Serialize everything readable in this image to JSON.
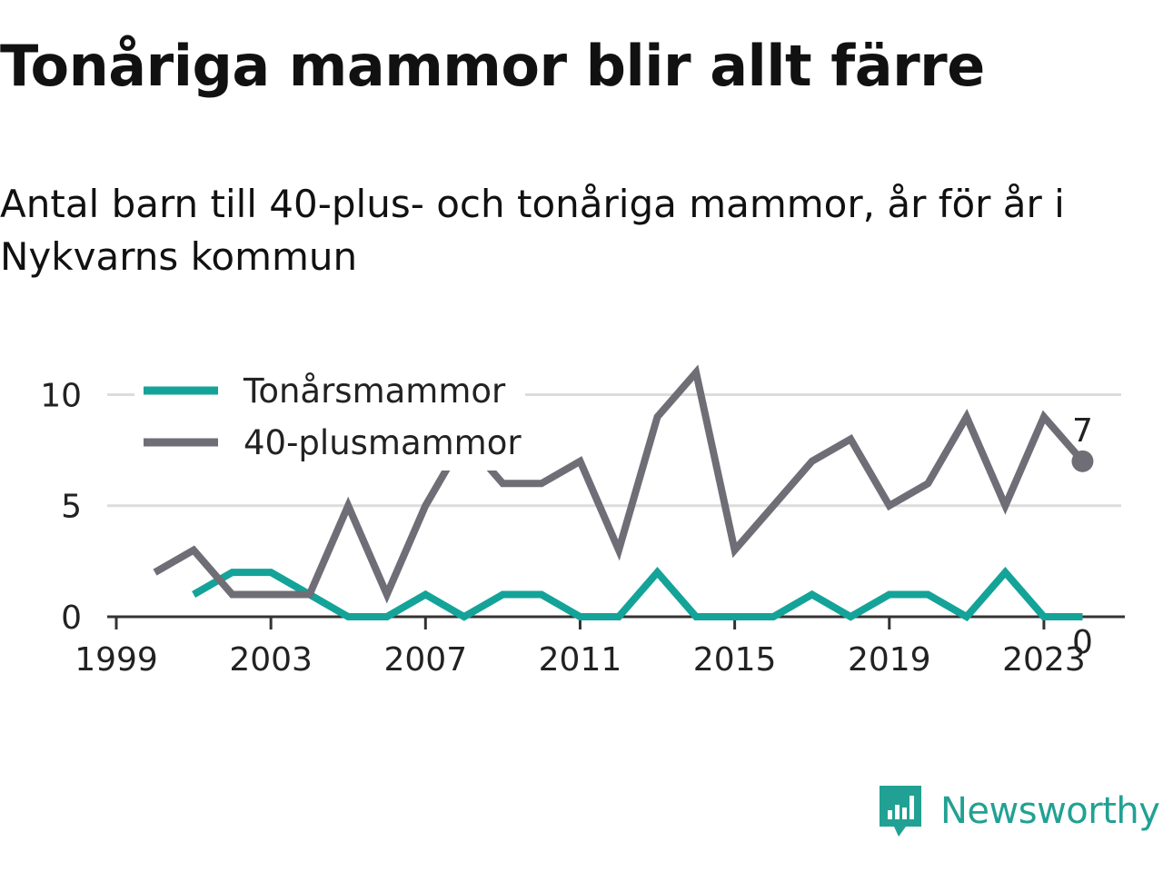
{
  "title": "Tonåriga mammor blir allt färre",
  "subtitle": "Antal barn till 40-plus- och tonåriga mammor, år för år i Nykvarns kommun",
  "brand": {
    "name": "Newsworthy",
    "color": "#21a193"
  },
  "chart_data": {
    "type": "line",
    "x": [
      2000,
      2001,
      2002,
      2003,
      2004,
      2005,
      2006,
      2007,
      2008,
      2009,
      2010,
      2011,
      2012,
      2013,
      2014,
      2015,
      2016,
      2017,
      2018,
      2019,
      2020,
      2021,
      2022,
      2023,
      2024
    ],
    "series": [
      {
        "name": "Tonårsmammor",
        "color": "#14a398",
        "values": [
          null,
          1,
          2,
          2,
          1,
          0,
          0,
          1,
          0,
          1,
          1,
          0,
          0,
          2,
          0,
          0,
          0,
          1,
          0,
          1,
          1,
          0,
          2,
          0,
          0
        ]
      },
      {
        "name": "40-plusmammor",
        "color": "#6f6e76",
        "values": [
          2,
          3,
          1,
          1,
          1,
          5,
          1,
          5,
          8,
          6,
          6,
          7,
          3,
          9,
          11,
          3,
          5,
          7,
          8,
          5,
          6,
          9,
          5,
          9,
          7
        ]
      }
    ],
    "xticks": [
      1999,
      2003,
      2007,
      2011,
      2015,
      2019,
      2023
    ],
    "yticks": [
      0,
      5,
      10
    ],
    "xlim": [
      1999,
      2025
    ],
    "ylim": [
      0,
      11
    ],
    "end_labels": [
      "0",
      "7"
    ],
    "grid": true,
    "legend": "top-left"
  }
}
